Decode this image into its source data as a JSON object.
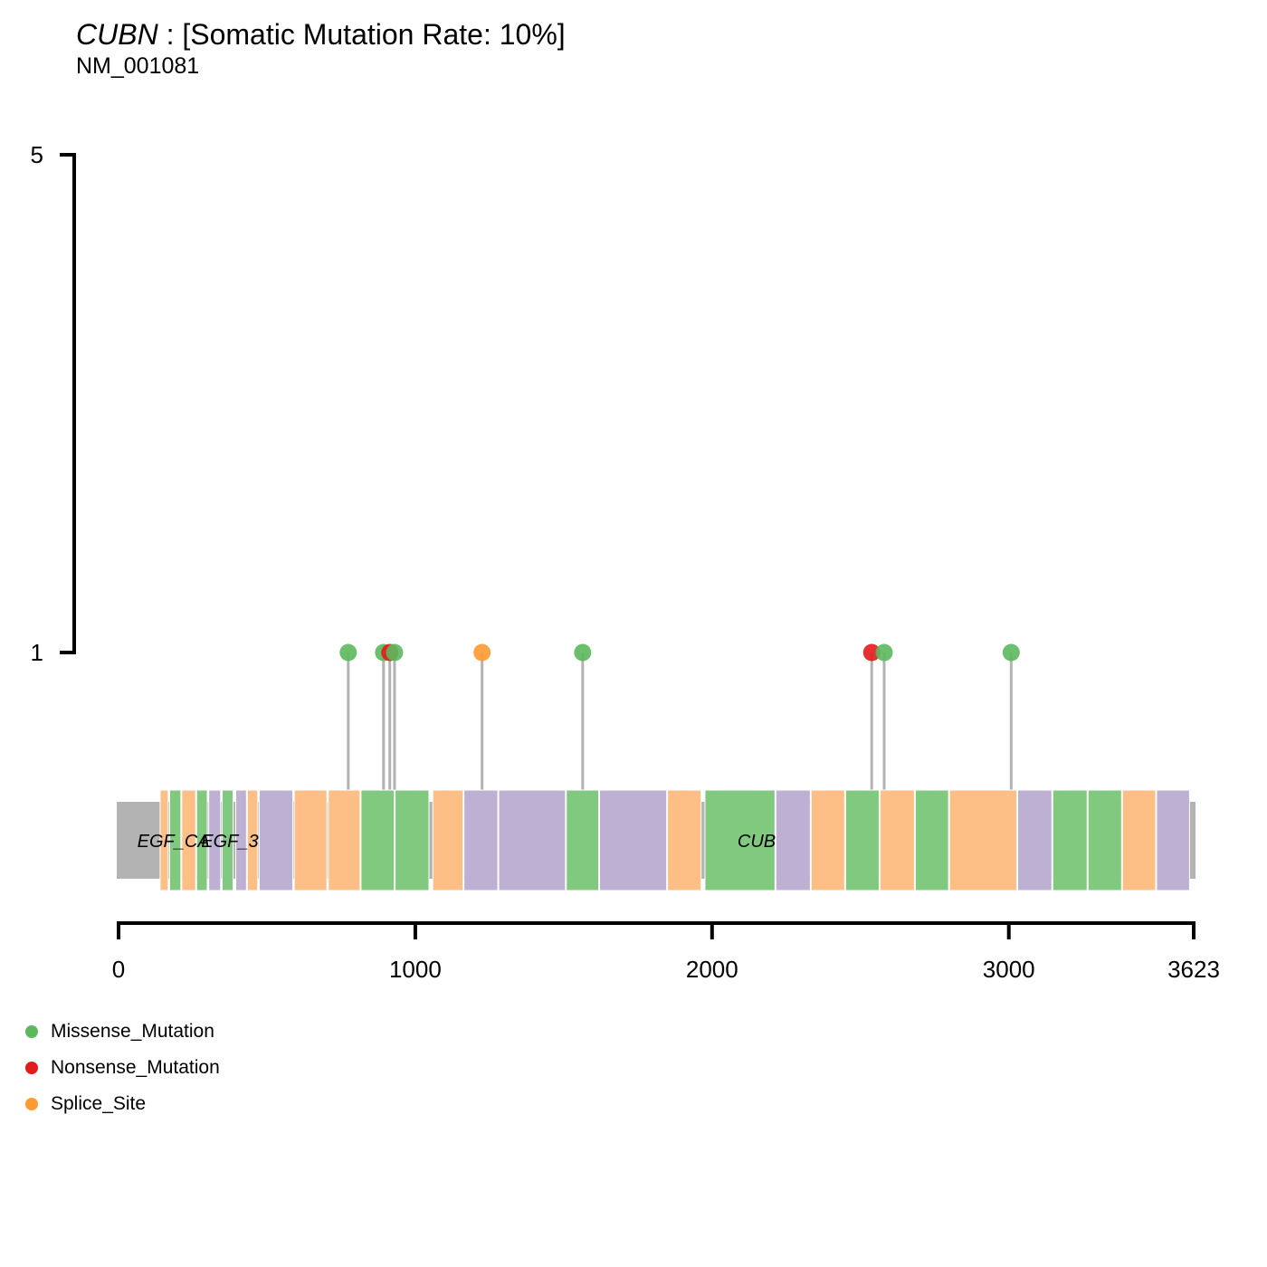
{
  "title": {
    "gene": "CUBN",
    "rate_text": " : [Somatic Mutation Rate: 10%]",
    "transcript": "NM_001081"
  },
  "chart_data": {
    "type": "lollipop",
    "protein_length": 3623,
    "x_ticks": [
      "0",
      "1000",
      "2000",
      "3000",
      "3623"
    ],
    "x_tick_values": [
      0,
      1000,
      2000,
      3000,
      3623
    ],
    "y_ticks": [
      "1",
      "5"
    ],
    "y_tick_values": [
      1,
      5
    ],
    "ylim": [
      0,
      5
    ],
    "colors": {
      "Missense_Mutation": "#5cb85c",
      "Nonsense_Mutation": "#e41a1c",
      "Splice_Site": "#ff9933",
      "backbone": "#b3b3b3",
      "stem": "#b3b3b3",
      "EGF_CA": "#fdbf85",
      "EGF": "#80c97f",
      "EGF_3": "#bdb0d3",
      "CUB": "#80c97f"
    },
    "domain_labels": [
      "EGF_CA",
      "EGF_3",
      "CUB"
    ],
    "domain_label_positions": [
      185,
      375,
      2150
    ],
    "domains": [
      {
        "type": "EGF_CA",
        "start": 140,
        "end": 170
      },
      {
        "type": "EGF",
        "start": 172,
        "end": 213
      },
      {
        "type": "EGF_CA",
        "start": 213,
        "end": 263
      },
      {
        "type": "EGF",
        "start": 263,
        "end": 302
      },
      {
        "type": "EGF_3",
        "start": 304,
        "end": 347
      },
      {
        "type": "EGF",
        "start": 349,
        "end": 389
      },
      {
        "type": "EGF_3",
        "start": 395,
        "end": 434
      },
      {
        "type": "EGF_CA",
        "start": 434,
        "end": 472
      },
      {
        "type": "EGF_3",
        "start": 474,
        "end": 590
      },
      {
        "type": "CUB",
        "start": 592,
        "end": 705
      },
      {
        "type": "CUB",
        "start": 707,
        "end": 817
      },
      {
        "type": "CUB",
        "start": 817,
        "end": 932
      },
      {
        "type": "CUB",
        "start": 932,
        "end": 1049
      },
      {
        "type": "CUB",
        "start": 1059,
        "end": 1164
      },
      {
        "type": "CUB",
        "start": 1164,
        "end": 1281
      },
      {
        "type": "CUB",
        "start": 1281,
        "end": 1509
      },
      {
        "type": "CUB",
        "start": 1509,
        "end": 1621
      },
      {
        "type": "CUB",
        "start": 1621,
        "end": 1850
      },
      {
        "type": "CUB",
        "start": 1850,
        "end": 1966
      },
      {
        "type": "CUB",
        "start": 1976,
        "end": 2215
      },
      {
        "type": "CUB",
        "start": 2215,
        "end": 2334
      },
      {
        "type": "CUB",
        "start": 2334,
        "end": 2450
      },
      {
        "type": "CUB",
        "start": 2450,
        "end": 2566
      },
      {
        "type": "CUB",
        "start": 2566,
        "end": 2685
      },
      {
        "type": "CUB",
        "start": 2685,
        "end": 2800
      },
      {
        "type": "CUB",
        "start": 2800,
        "end": 3030
      },
      {
        "type": "CUB",
        "start": 3030,
        "end": 3148
      },
      {
        "type": "CUB",
        "start": 3148,
        "end": 3267
      },
      {
        "type": "CUB",
        "start": 3267,
        "end": 3383
      },
      {
        "type": "CUB",
        "start": 3383,
        "end": 3498
      },
      {
        "type": "CUB",
        "start": 3498,
        "end": 3612
      }
    ],
    "domain_colors_sequence": [
      "#fdbf85",
      "#80c97f",
      "#fdbf85",
      "#80c97f",
      "#bdb0d3",
      "#80c97f",
      "#bdb0d3",
      "#fdbf85",
      "#bdb0d3",
      "#fdbf85",
      "#fdbf85",
      "#80c97f",
      "#80c97f",
      "#fdbf85",
      "#bdb0d3",
      "#bdb0d3",
      "#80c97f",
      "#bdb0d3",
      "#fdbf85",
      "#80c97f",
      "#bdb0d3",
      "#fdbf85",
      "#80c97f",
      "#fdbf85",
      "#80c97f",
      "#fdbf85",
      "#bdb0d3",
      "#80c97f",
      "#80c97f",
      "#fdbf85",
      "#bdb0d3"
    ],
    "mutations": [
      {
        "pos": 774,
        "count": 1,
        "class": "Missense_Mutation"
      },
      {
        "pos": 893,
        "count": 1,
        "class": "Missense_Mutation"
      },
      {
        "pos": 914,
        "count": 1,
        "class": "Nonsense_Mutation"
      },
      {
        "pos": 930,
        "count": 1,
        "class": "Missense_Mutation"
      },
      {
        "pos": 1225,
        "count": 1,
        "class": "Splice_Site"
      },
      {
        "pos": 1564,
        "count": 1,
        "class": "Missense_Mutation"
      },
      {
        "pos": 2538,
        "count": 1,
        "class": "Nonsense_Mutation"
      },
      {
        "pos": 2580,
        "count": 1,
        "class": "Missense_Mutation"
      },
      {
        "pos": 3008,
        "count": 1,
        "class": "Missense_Mutation"
      }
    ],
    "legend": [
      "Missense_Mutation",
      "Nonsense_Mutation",
      "Splice_Site"
    ]
  }
}
